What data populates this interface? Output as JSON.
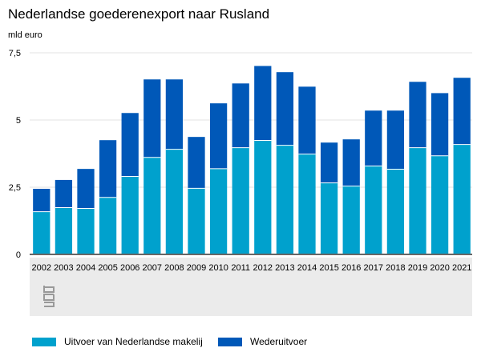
{
  "chart_data": {
    "type": "bar",
    "stacked": true,
    "title": "Nederlandse goederenexport naar Rusland",
    "ylabel": "mld euro",
    "xlabel": "",
    "ylim": [
      0,
      7.5
    ],
    "yticks": [
      0,
      2.5,
      5,
      7.5
    ],
    "ytick_labels": [
      "0",
      "2,5",
      "5",
      "7,5"
    ],
    "grid": true,
    "legend_position": "bottom",
    "categories": [
      "2002",
      "2003",
      "2004",
      "2005",
      "2006",
      "2007",
      "2008",
      "2009",
      "2010",
      "2011",
      "2012",
      "2013",
      "2014",
      "2015",
      "2016",
      "2017",
      "2018",
      "2019",
      "2020",
      "2021"
    ],
    "series": [
      {
        "name": "Uitvoer van Nederlandse makelij",
        "color": "#00a1cd",
        "values": [
          1.59,
          1.74,
          1.71,
          2.12,
          2.9,
          3.61,
          3.91,
          2.46,
          3.19,
          3.97,
          4.24,
          4.06,
          3.73,
          2.66,
          2.54,
          3.29,
          3.17,
          3.97,
          3.67,
          4.09
        ]
      },
      {
        "name": "Wederuitvoer",
        "color": "#0058b8",
        "values": [
          0.85,
          1.03,
          1.47,
          2.13,
          2.36,
          2.9,
          2.6,
          1.91,
          2.43,
          2.39,
          2.77,
          2.72,
          2.51,
          1.5,
          1.74,
          2.06,
          2.18,
          2.45,
          2.33,
          2.48
        ]
      }
    ]
  }
}
